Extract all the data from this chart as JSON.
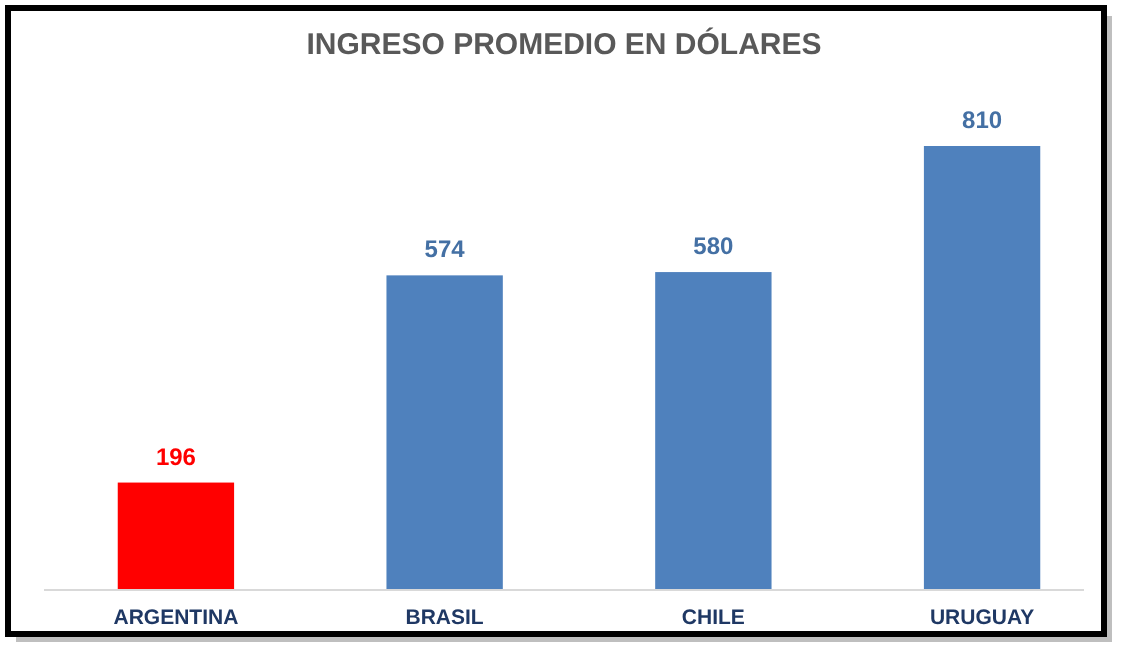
{
  "chart_data": {
    "type": "bar",
    "title": "INGRESO PROMEDIO EN DÓLARES",
    "categories": [
      "ARGENTINA",
      "BRASIL",
      "CHILE",
      "URUGUAY"
    ],
    "values": [
      196,
      574,
      580,
      810
    ],
    "colors": [
      "#ff0000",
      "#4f81bd",
      "#4f81bd",
      "#4f81bd"
    ],
    "data_labels": true
  }
}
